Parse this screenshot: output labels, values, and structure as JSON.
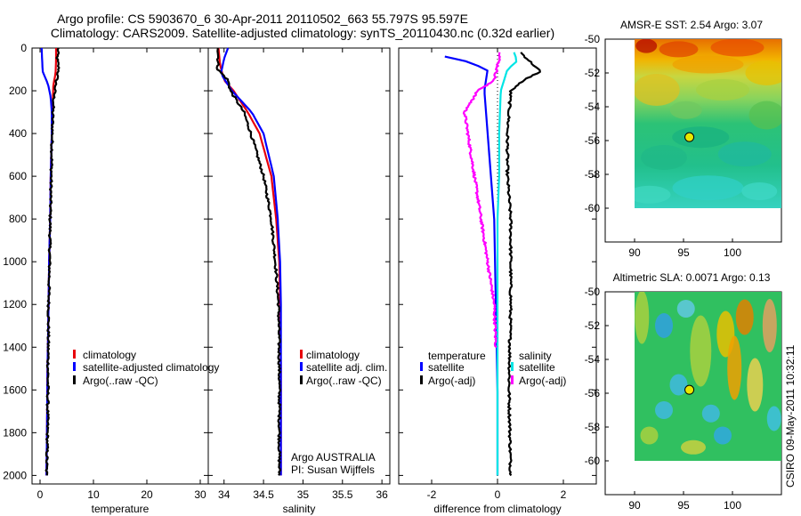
{
  "header": {
    "title_line1": "Argo profile: CS 5903670_6 30-Apr-2011 20110502_663 55.797S 95.597E",
    "title_line2": "Climatology: CARS2009. Satellite-adjusted climatology: synTS_20110430.nc (0.32d earlier)"
  },
  "footer": {
    "vertical_stamp": "CSIRO 09-May-2011 10:32:11",
    "float_info_line1": "Argo AUSTRALIA",
    "float_info_line2": "PI: Susan Wijffels"
  },
  "colors": {
    "climatology": "#e8000b",
    "satellite": "#0000ff",
    "argo": "#000000",
    "salinity_satellite": "#00e5e5",
    "salinity_argo": "#ff00ff"
  },
  "chart_data": [
    {
      "type": "line",
      "panel": "temperature",
      "xlabel": "temperature",
      "ylabel": "",
      "xlim": [
        -1.5,
        31.5
      ],
      "ylim": [
        2040,
        0
      ],
      "xticks": [
        0,
        10,
        20,
        30
      ],
      "yticks": [
        0,
        200,
        400,
        600,
        800,
        1000,
        1200,
        1400,
        1600,
        1800,
        2000
      ],
      "legend": [
        "climatology",
        "satellite-adjusted climatology",
        "Argo(..raw -QC)"
      ],
      "legend_location": "lower-left",
      "series": [
        {
          "name": "climatology",
          "color": "climatology",
          "x": [
            3.0,
            3.0,
            2.9,
            2.5,
            2.4,
            2.3,
            2.2,
            2.0,
            1.9,
            1.7,
            1.6,
            1.4,
            1.3,
            1.2
          ],
          "y": [
            0,
            60,
            120,
            170,
            230,
            300,
            400,
            600,
            800,
            1000,
            1200,
            1500,
            1800,
            2000
          ]
        },
        {
          "name": "satellite-adjusted climatology",
          "color": "satellite",
          "x": [
            0.3,
            0.4,
            0.5,
            1.5,
            2.0,
            2.2,
            2.2,
            2.0,
            1.9,
            1.7,
            1.6,
            1.4,
            1.3,
            1.2
          ],
          "y": [
            0,
            60,
            110,
            170,
            230,
            300,
            400,
            600,
            800,
            1000,
            1200,
            1500,
            1800,
            2000
          ]
        },
        {
          "name": "Argo(..raw -QC)",
          "color": "argo",
          "x": [
            3.4,
            3.2,
            3.5,
            3.0,
            2.6,
            2.4,
            2.3,
            2.1,
            1.9,
            1.8,
            1.6,
            1.5,
            1.4,
            1.2
          ],
          "y": [
            0,
            50,
            100,
            160,
            230,
            300,
            400,
            600,
            800,
            1000,
            1200,
            1500,
            1800,
            2000
          ]
        }
      ]
    },
    {
      "type": "line",
      "panel": "salinity",
      "xlabel": "salinity",
      "ylabel": "",
      "xlim": [
        33.8,
        36.1
      ],
      "ylim": [
        2040,
        0
      ],
      "xticks": [
        34,
        34.5,
        35,
        35.5,
        36
      ],
      "xticklabels": [
        "34",
        "34.5",
        "35",
        "35.5",
        "36"
      ],
      "legend": [
        "climatology",
        "satellite adj. clim.",
        "Argo(..raw -QC)"
      ],
      "legend_location": "lower-right",
      "series": [
        {
          "name": "climatology",
          "color": "climatology",
          "x": [
            33.93,
            33.95,
            34.0,
            34.12,
            34.3,
            34.45,
            34.6,
            34.66,
            34.7,
            34.71,
            34.72,
            34.72
          ],
          "y": [
            0,
            80,
            150,
            200,
            300,
            400,
            600,
            800,
            1000,
            1200,
            1500,
            2000
          ]
        },
        {
          "name": "satellite adj. clim.",
          "color": "satellite",
          "x": [
            34.05,
            34.0,
            33.96,
            34.1,
            34.35,
            34.5,
            34.63,
            34.68,
            34.71,
            34.72,
            34.72,
            34.72
          ],
          "y": [
            0,
            50,
            120,
            200,
            300,
            400,
            600,
            800,
            1000,
            1200,
            1500,
            2000
          ]
        },
        {
          "name": "Argo(..raw -QC)",
          "color": "argo",
          "x": [
            33.93,
            33.92,
            34.05,
            34.08,
            34.25,
            34.34,
            34.5,
            34.6,
            34.65,
            34.69,
            34.7,
            34.7
          ],
          "y": [
            0,
            100,
            150,
            200,
            300,
            400,
            600,
            800,
            1000,
            1200,
            1500,
            2000
          ]
        }
      ]
    },
    {
      "type": "line",
      "panel": "difference",
      "xlabel": "difference from climatology",
      "ylabel": "",
      "xlim": [
        -3,
        3
      ],
      "ylim": [
        2040,
        0
      ],
      "xticks": [
        -2,
        0,
        2
      ],
      "legend_groups": [
        {
          "title": "temperature",
          "entries": [
            "satellite",
            "Argo(-adj)"
          ]
        },
        {
          "title": "salinity",
          "entries": [
            "satellite",
            "Argo(-adj)"
          ]
        }
      ],
      "legend_location": "lower-center",
      "series": [
        {
          "name": "temperature satellite",
          "color": "satellite",
          "x": [
            -1.6,
            -1.0,
            -0.3,
            -0.4,
            -0.3,
            -0.2,
            -0.1,
            -0.05,
            0,
            0
          ],
          "y": [
            40,
            60,
            100,
            200,
            400,
            600,
            800,
            1200,
            1600,
            2000
          ]
        },
        {
          "name": "temperature Argo(-adj)",
          "color": "argo",
          "x": [
            0.7,
            1.3,
            0.8,
            0.4,
            0.3,
            0.3,
            0.4,
            0.4,
            0.35,
            0.4
          ],
          "y": [
            20,
            110,
            150,
            200,
            400,
            600,
            800,
            1200,
            1600,
            2000
          ]
        },
        {
          "name": "salinity satellite",
          "color": "salinity_satellite",
          "x": [
            0.5,
            0.6,
            0.3,
            0.1,
            0.05,
            0.05,
            0.0,
            0.0,
            0.0,
            0.0
          ],
          "y": [
            20,
            60,
            100,
            200,
            400,
            600,
            800,
            1200,
            1600,
            2000
          ]
        },
        {
          "name": "salinity Argo(-adj)",
          "color": "salinity_argo",
          "x": [
            0.1,
            -0.1,
            -0.6,
            -1.0,
            -0.9,
            -0.7,
            -0.5,
            -0.3,
            -0.1,
            -0.05
          ],
          "y": [
            20,
            150,
            200,
            300,
            400,
            600,
            800,
            1000,
            1200,
            1400
          ]
        }
      ]
    },
    {
      "type": "heatmap",
      "panel": "sst_map",
      "title": "AMSR-E SST: 2.54 Argo: 3.07",
      "xlim": [
        87,
        105
      ],
      "ylim": [
        -62,
        -50
      ],
      "xticks": [
        90,
        95,
        100
      ],
      "yticks": [
        -50,
        -52,
        -54,
        -56,
        -58,
        -60
      ],
      "yticklabels": [
        "-50",
        "-52",
        "-54",
        "-56",
        "-58",
        "-60"
      ],
      "data_extent": {
        "x": [
          90,
          105
        ],
        "y": [
          -60,
          -50
        ]
      },
      "argo_position": {
        "x": 95.597,
        "y": -55.797
      }
    },
    {
      "type": "heatmap",
      "panel": "sla_map",
      "title": "Altimetric SLA: 0.0071 Argo: 0.13",
      "xlim": [
        87,
        105
      ],
      "ylim": [
        -62,
        -50
      ],
      "xticks": [
        90,
        95,
        100
      ],
      "yticks": [
        -50,
        -52,
        -54,
        -56,
        -58,
        -60
      ],
      "yticklabels": [
        "-50",
        "-52",
        "-54",
        "-56",
        "-58",
        "-60"
      ],
      "data_extent": {
        "x": [
          90,
          105
        ],
        "y": [
          -60,
          -50
        ]
      },
      "argo_position": {
        "x": 95.597,
        "y": -55.797
      }
    }
  ]
}
